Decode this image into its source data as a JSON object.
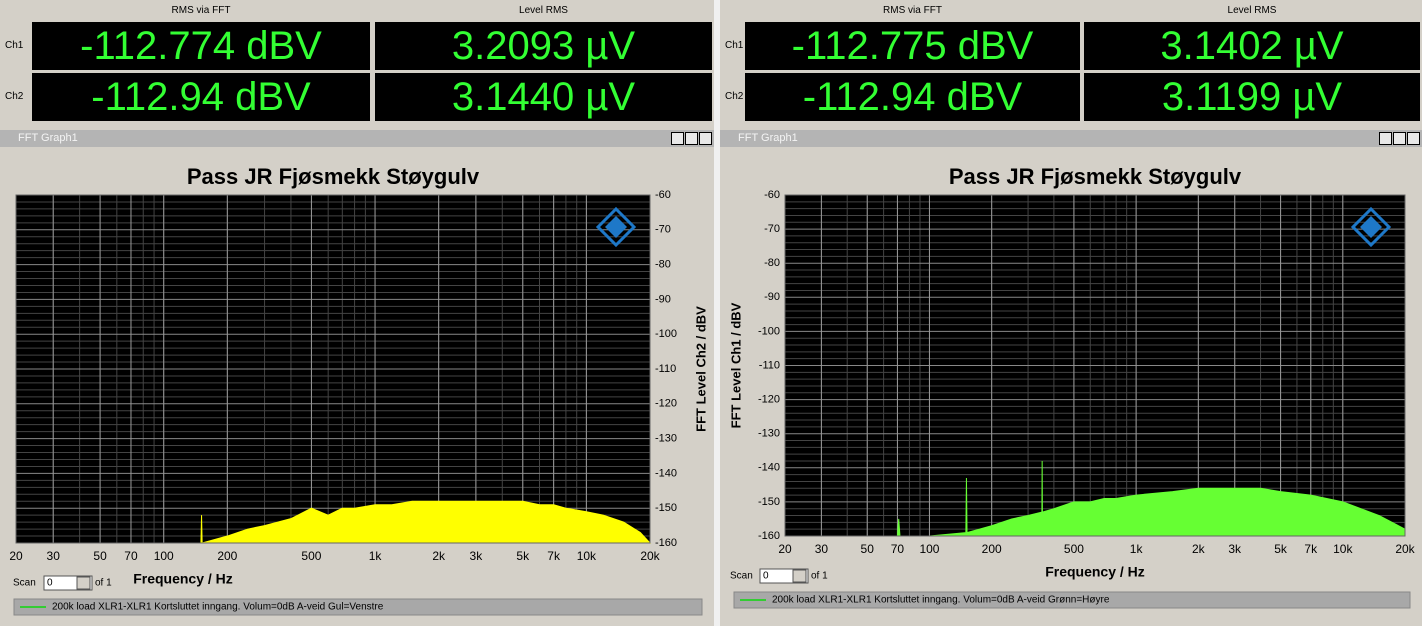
{
  "panels": [
    {
      "meter": {
        "headers": [
          "RMS via FFT",
          "Level RMS"
        ],
        "rows": [
          {
            "channel": "Ch1",
            "values": [
              "-112.774 dBV",
              "3.2093 µV"
            ]
          },
          {
            "channel": "Ch2",
            "values": [
              "-112.94 dBV",
              "3.1440 µV"
            ]
          }
        ]
      },
      "window_title": "FFT Graph1",
      "scan": {
        "label": "Scan",
        "value": 0,
        "of": "of 1"
      },
      "legend": "200k load XLR1-XLR1 Kortsluttet inngang. Volum=0dB A-veid Gul=Venstre"
    },
    {
      "meter": {
        "headers": [
          "RMS via FFT",
          "Level RMS"
        ],
        "rows": [
          {
            "channel": "Ch1",
            "values": [
              "-112.775 dBV",
              "3.1402 µV"
            ]
          },
          {
            "channel": "Ch2",
            "values": [
              "-112.94 dBV",
              "3.1199 µV"
            ]
          }
        ]
      },
      "window_title": "FFT Graph1",
      "scan": {
        "label": "Scan",
        "value": 0,
        "of": "of 1"
      },
      "legend": "200k load XLR1-XLR1 Kortsluttet inngang. Volum=0dB A-veid Grønn=Høyre"
    }
  ],
  "chart_data": [
    {
      "type": "area",
      "title": "Pass JR Fjøsmekk Støygulv",
      "x_label": "Frequency / Hz",
      "y_label": "FFT Level Ch2 / dBV",
      "y_axis_side": "right",
      "x_log": true,
      "grid": true,
      "color": "#ffff00",
      "legend_color": "#33cc33",
      "x": [
        20,
        50,
        100,
        150,
        151,
        152,
        200,
        250,
        300,
        400,
        500,
        600,
        700,
        800,
        1000,
        1200,
        1500,
        2000,
        2500,
        3000,
        4000,
        5000,
        6000,
        7000,
        8000,
        10000,
        12000,
        15000,
        18000,
        20000
      ],
      "values": [
        -160,
        -160,
        -160,
        -160,
        -152,
        -160,
        -158,
        -156,
        -155,
        -153,
        -150,
        -152,
        -150,
        -150,
        -149,
        -149,
        -148,
        -148,
        -148,
        -148,
        -148,
        -148,
        -149,
        -149,
        -150,
        -151,
        -152,
        -154,
        -157,
        -160
      ],
      "xlim": [
        20,
        20000
      ],
      "xticks": [
        20,
        30,
        50,
        70,
        100,
        200,
        500,
        {
          "value": 1000,
          "label": "1k"
        },
        {
          "value": 2000,
          "label": "2k"
        },
        {
          "value": 3000,
          "label": "3k"
        },
        {
          "value": 5000,
          "label": "5k"
        },
        {
          "value": 7000,
          "label": "7k"
        },
        {
          "value": 10000,
          "label": "10k"
        },
        {
          "value": 20000,
          "label": "20k"
        }
      ],
      "ylim": [
        -160,
        -60
      ],
      "yticks": [
        -60,
        -70,
        -80,
        -90,
        -100,
        -110,
        -120,
        -130,
        -140,
        -150,
        -160
      ]
    },
    {
      "type": "area",
      "title": "Pass JR Fjøsmekk Støygulv",
      "x_label": "Frequency / Hz",
      "y_label": "FFT Level Ch1 / dBV",
      "y_axis_side": "left",
      "x_log": true,
      "grid": true,
      "color": "#66ff33",
      "legend_color": "#33cc33",
      "x": [
        20,
        50,
        70,
        71,
        72,
        100,
        150,
        151,
        152,
        200,
        250,
        300,
        350,
        351,
        352,
        400,
        500,
        600,
        700,
        800,
        1000,
        1500,
        2000,
        3000,
        4000,
        5000,
        7000,
        10000,
        15000,
        20000
      ],
      "values": [
        -160,
        -160,
        -160,
        -155,
        -160,
        -160,
        -159,
        -143,
        -159,
        -157,
        -155,
        -154,
        -153,
        -138,
        -153,
        -152,
        -150,
        -150,
        -149,
        -149,
        -148,
        -147,
        -146,
        -146,
        -146,
        -147,
        -148,
        -150,
        -154,
        -158
      ],
      "xlim": [
        20,
        20000
      ],
      "xticks": [
        20,
        30,
        50,
        70,
        100,
        200,
        500,
        {
          "value": 1000,
          "label": "1k"
        },
        {
          "value": 2000,
          "label": "2k"
        },
        {
          "value": 3000,
          "label": "3k"
        },
        {
          "value": 5000,
          "label": "5k"
        },
        {
          "value": 7000,
          "label": "7k"
        },
        {
          "value": 10000,
          "label": "10k"
        },
        {
          "value": 20000,
          "label": "20k"
        }
      ],
      "ylim": [
        -160,
        -60
      ],
      "yticks": [
        -60,
        -70,
        -80,
        -90,
        -100,
        -110,
        -120,
        -130,
        -140,
        -150,
        -160
      ]
    }
  ]
}
